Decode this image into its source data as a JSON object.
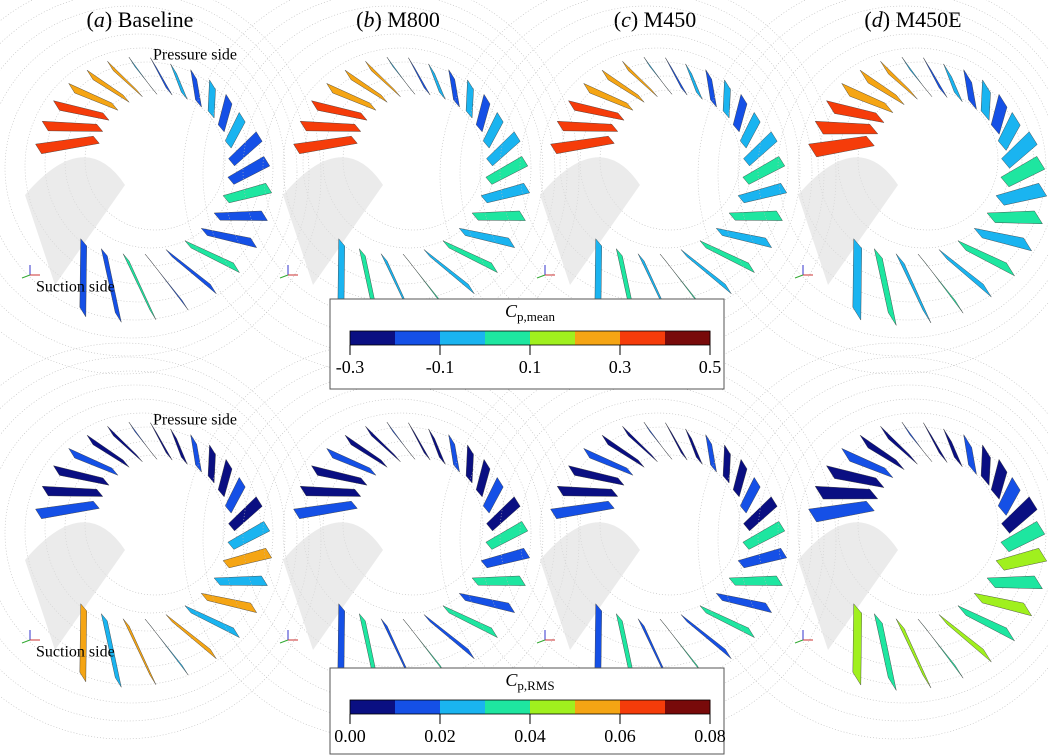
{
  "panels": [
    {
      "letter": "a",
      "name": "Baseline"
    },
    {
      "letter": "b",
      "name": "M800"
    },
    {
      "letter": "c",
      "name": "M450"
    },
    {
      "letter": "d",
      "name": "M450E"
    }
  ],
  "annotations": {
    "pressure_side": "Pressure side",
    "suction_side": "Suction side"
  },
  "colorbars": [
    {
      "symbol": "C",
      "subscript": "p,mean",
      "lim": [
        -0.3,
        0.5
      ],
      "ticks": [
        {
          "value": -0.3,
          "label": "-0.3"
        },
        {
          "value": -0.1,
          "label": "-0.1"
        },
        {
          "value": 0.1,
          "label": "0.1"
        },
        {
          "value": 0.3,
          "label": "0.3"
        },
        {
          "value": 0.5,
          "label": "0.5"
        }
      ],
      "colors": [
        "#0a0f82",
        "#1550e6",
        "#1ab4f0",
        "#1ee6a0",
        "#a0f01e",
        "#f5a514",
        "#f53c0a",
        "#780a0a"
      ]
    },
    {
      "symbol": "C",
      "subscript": "p,RMS",
      "lim": [
        0,
        0.08
      ],
      "ticks": [
        {
          "value": 0,
          "label": "0.00"
        },
        {
          "value": 0.02,
          "label": "0.02"
        },
        {
          "value": 0.04,
          "label": "0.04"
        },
        {
          "value": 0.06,
          "label": "0.06"
        },
        {
          "value": 0.08,
          "label": "0.08"
        }
      ],
      "colors": [
        "#0a0f82",
        "#1550e6",
        "#1ab4f0",
        "#1ee6a0",
        "#a0f01e",
        "#f5a514",
        "#f53c0a",
        "#780a0a"
      ]
    }
  ]
}
